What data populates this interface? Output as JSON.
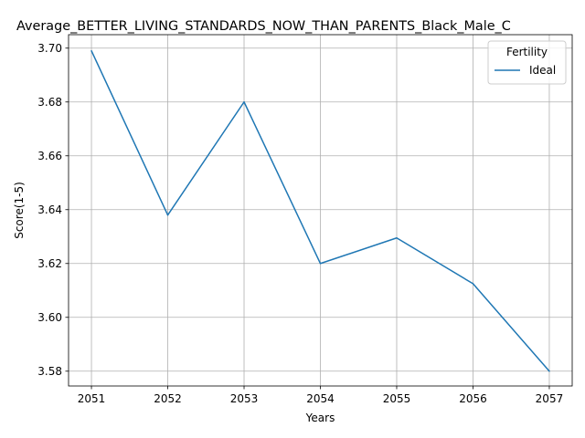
{
  "chart_data": {
    "type": "line",
    "title": "Average_BETTER_LIVING_STANDARDS_NOW_THAN_PARENTS_Black_Male_C",
    "xlabel": "Years",
    "ylabel": "Score(1-5)",
    "x": [
      2051,
      2052,
      2053,
      2054,
      2055,
      2056,
      2057
    ],
    "xticks": [
      "2051",
      "2052",
      "2053",
      "2054",
      "2055",
      "2056",
      "2057"
    ],
    "yticks": [
      "3.58",
      "3.60",
      "3.62",
      "3.64",
      "3.66",
      "3.68",
      "3.70"
    ],
    "ylim": [
      3.5745,
      3.705
    ],
    "grid": true,
    "legend": {
      "title": "Fertility",
      "placement": "top-right"
    },
    "series": [
      {
        "name": "Ideal",
        "color": "#1f77b4",
        "values": [
          3.699,
          3.638,
          3.68,
          3.62,
          3.6295,
          3.6125,
          3.58
        ]
      }
    ]
  }
}
